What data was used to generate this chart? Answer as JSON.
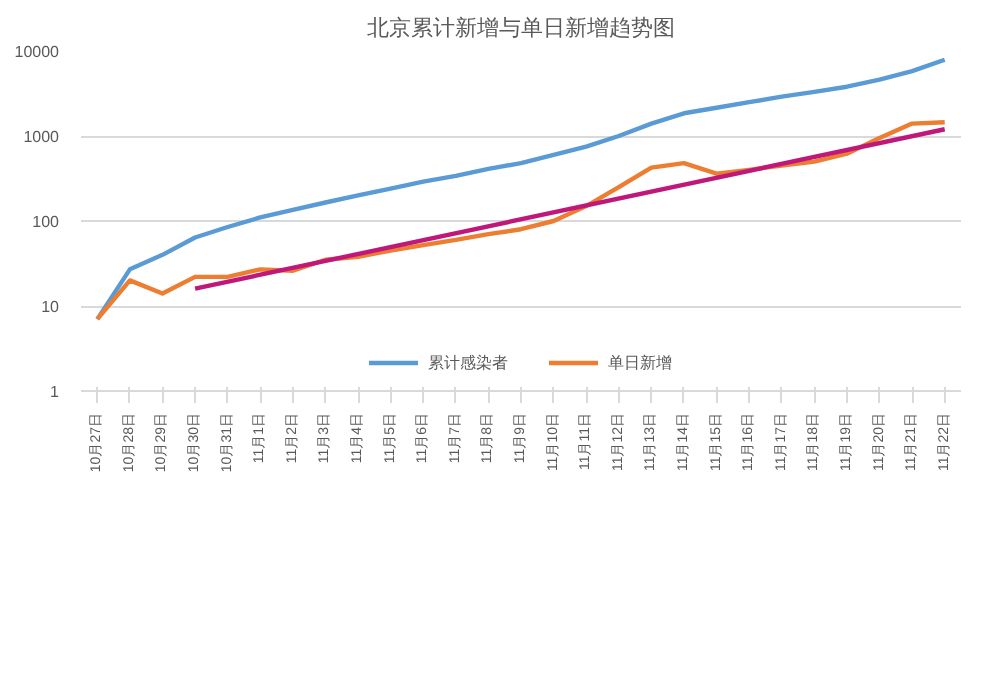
{
  "chart_data": {
    "type": "line",
    "title": "北京累计新增与单日新增趋势图",
    "categories": [
      "10月27日",
      "10月28日",
      "10月29日",
      "10月30日",
      "10月31日",
      "11月1日",
      "11月2日",
      "11月3日",
      "11月4日",
      "11月5日",
      "11月6日",
      "11月7日",
      "11月8日",
      "11月9日",
      "11月10日",
      "11月11日",
      "11月12日",
      "11月13日",
      "11月14日",
      "11月15日",
      "11月16日",
      "11月17日",
      "11月18日",
      "11月19日",
      "11月20日",
      "11月21日",
      "11月22日"
    ],
    "series": [
      {
        "name": "累计感染者",
        "color": "#5b9bd5",
        "values": [
          7,
          27,
          40,
          64,
          85,
          110,
          135,
          165,
          200,
          240,
          290,
          340,
          410,
          480,
          600,
          750,
          1000,
          1400,
          1850,
          2150,
          2500,
          2900,
          3300,
          3800,
          4600,
          5800,
          7900
        ]
      },
      {
        "name": "单日新增",
        "color": "#ed7d31",
        "values": [
          7,
          20,
          14,
          22,
          22,
          27,
          26,
          35,
          38,
          45,
          52,
          60,
          70,
          80,
          100,
          150,
          250,
          425,
          480,
          360,
          400,
          450,
          500,
          620,
          950,
          1400,
          1450
        ]
      },
      {
        "type": "line",
        "color": "#c0187a",
        "x": [
          "10月30日",
          "11月22日"
        ],
        "values": [
          16,
          1200
        ]
      }
    ],
    "log": true,
    "ylim": [
      1,
      10000
    ],
    "yticks": [
      1,
      10,
      100,
      1000,
      10000
    ],
    "grid": "y",
    "legend": "bottom"
  }
}
